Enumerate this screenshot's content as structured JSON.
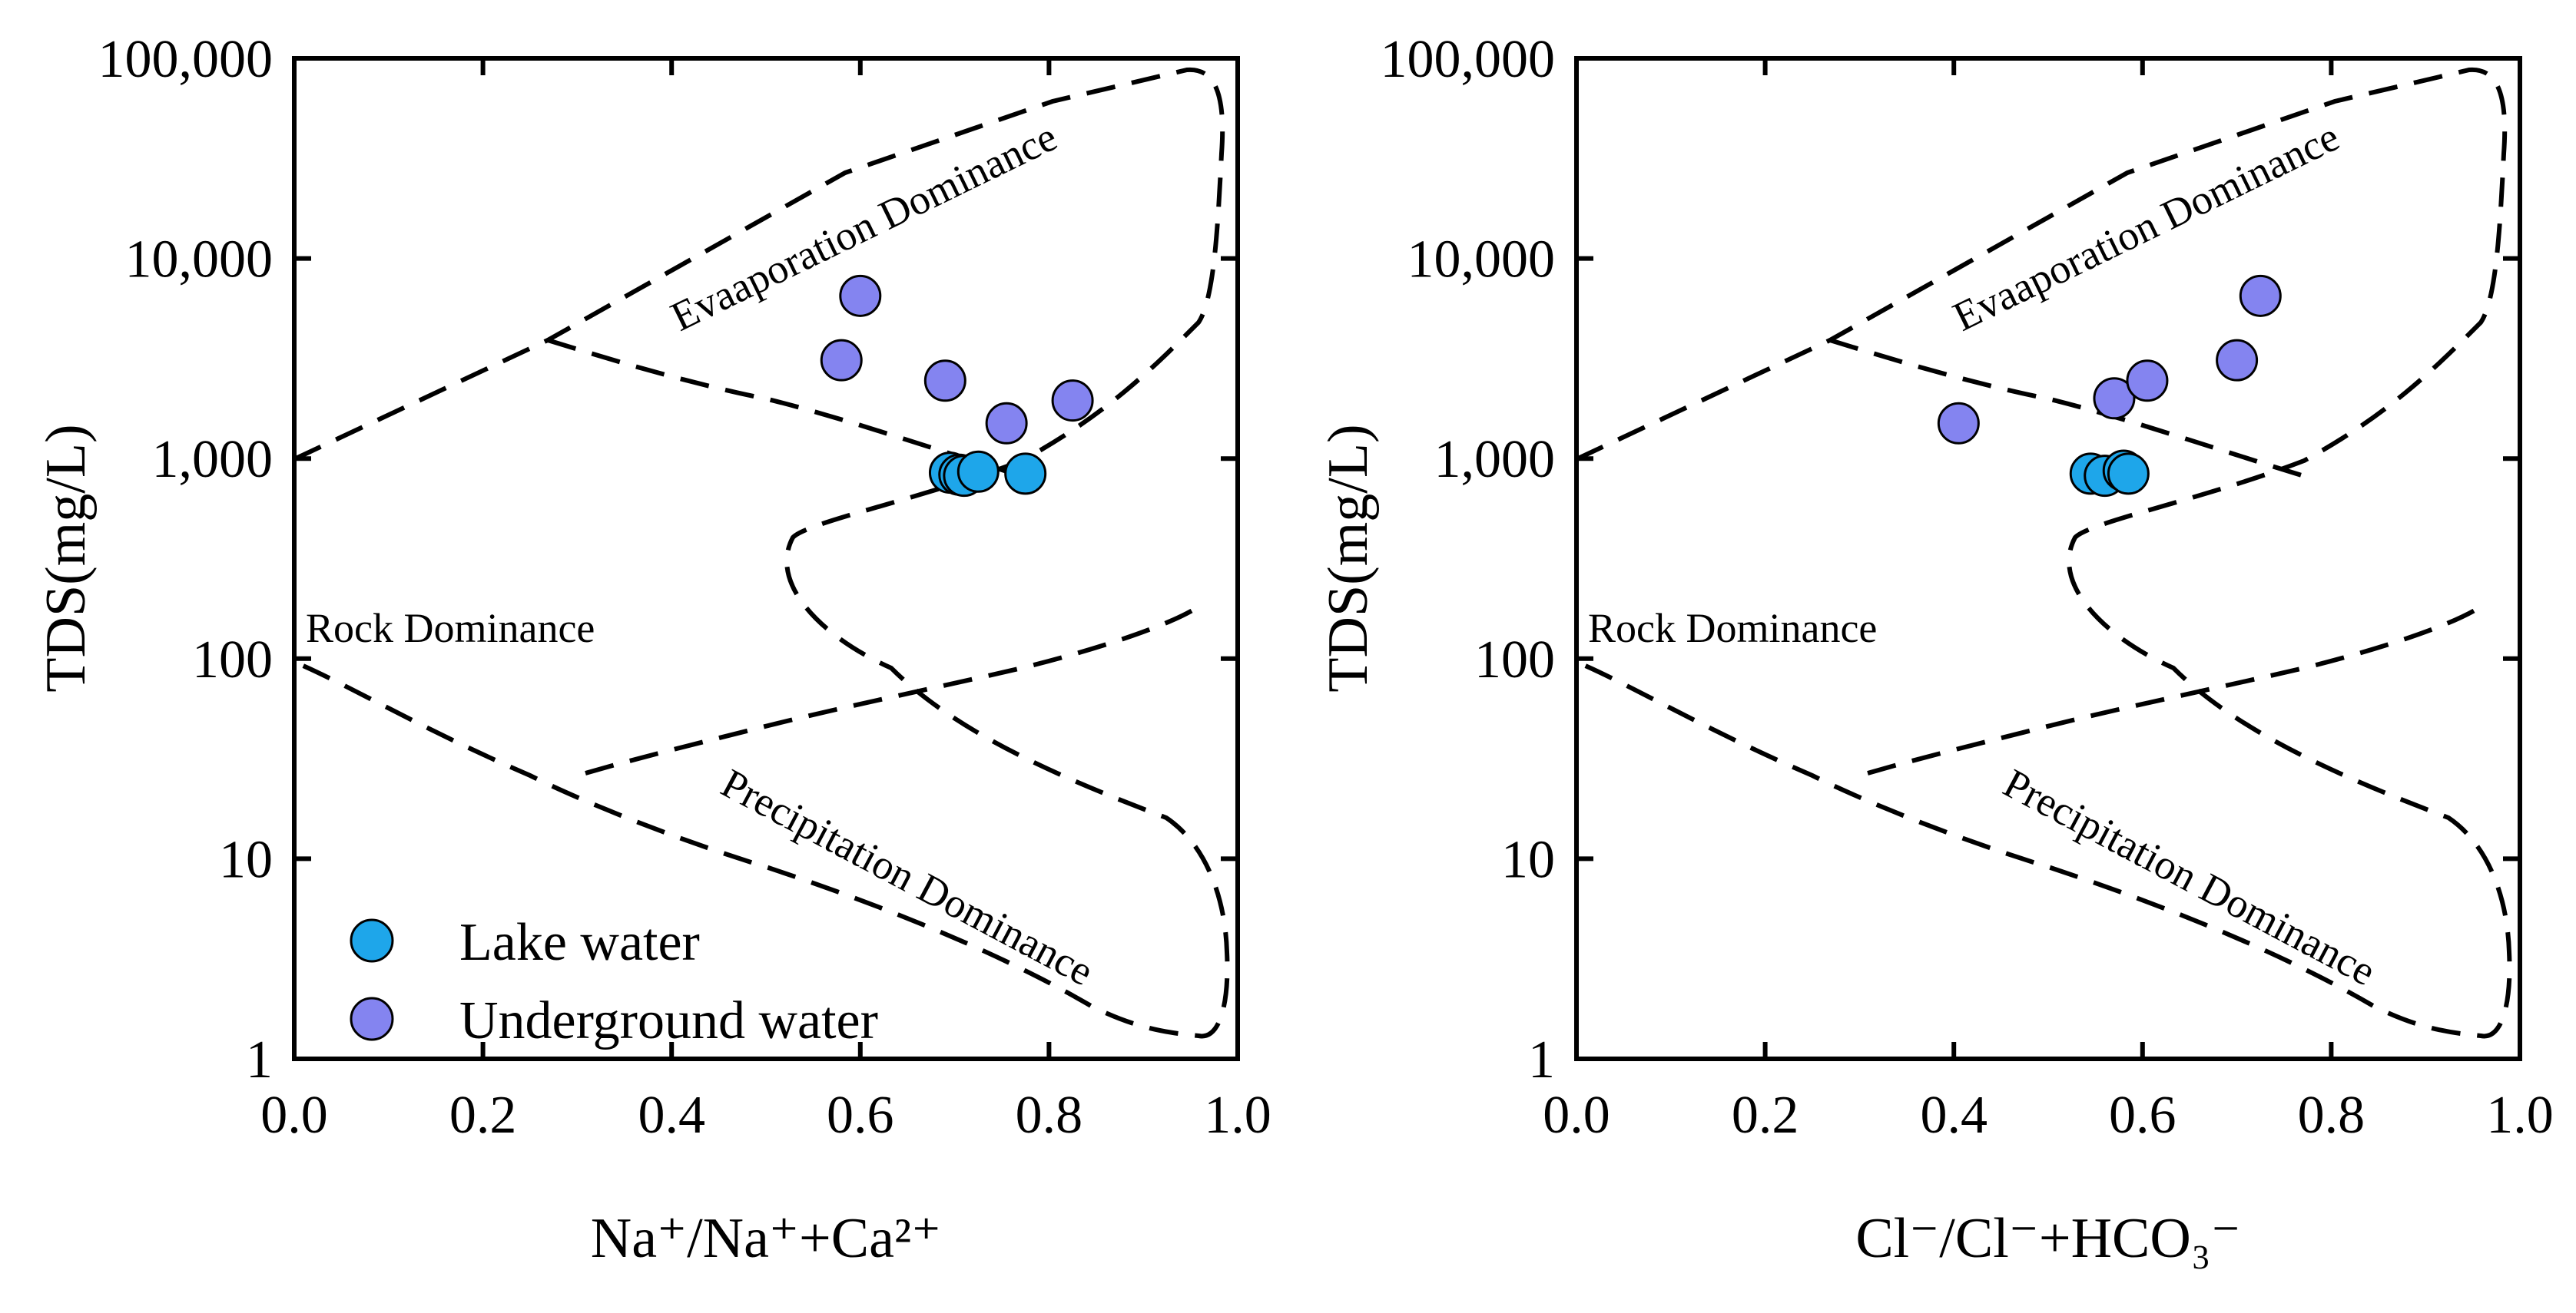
{
  "chart_data": [
    {
      "type": "scatter",
      "xlabel": "Na⁺/Na⁺+Ca²⁺",
      "ylabel": "TDS(mg/L)",
      "xlim": [
        0,
        1
      ],
      "ylim": [
        1,
        100000
      ],
      "yscale": "log",
      "xticks": [
        "0.0",
        "0.2",
        "0.4",
        "0.6",
        "0.8",
        "1.0"
      ],
      "yticks": [
        "1",
        "10",
        "100",
        "1,000",
        "10,000",
        "100,000"
      ],
      "regions": [
        "Evaaporation Dominance",
        "Rock Dominance",
        "Precipitation Dominance"
      ],
      "legend": {
        "position": "bottom-left",
        "entries": [
          "Lake water",
          "Underground water"
        ]
      },
      "series": [
        {
          "name": "Lake water",
          "color": "#1ea6ea",
          "points": [
            [
              0.695,
              850
            ],
            [
              0.705,
              830
            ],
            [
              0.71,
              820
            ],
            [
              0.725,
              860
            ],
            [
              0.775,
              840
            ]
          ]
        },
        {
          "name": "Underground water",
          "color": "#8484f0",
          "points": [
            [
              0.58,
              3100
            ],
            [
              0.6,
              6500
            ],
            [
              0.69,
              2450
            ],
            [
              0.755,
              1500
            ],
            [
              0.825,
              1950
            ]
          ]
        }
      ]
    },
    {
      "type": "scatter",
      "xlabel": "Cl⁻/Cl⁻+HCO₃⁻",
      "ylabel": "TDS(mg/L)",
      "xlim": [
        0,
        1
      ],
      "ylim": [
        1,
        100000
      ],
      "yscale": "log",
      "xticks": [
        "0.0",
        "0.2",
        "0.4",
        "0.6",
        "0.8",
        "1.0"
      ],
      "yticks": [
        "1",
        "10",
        "100",
        "1,000",
        "10,000",
        "100,000"
      ],
      "regions": [
        "Evaaporation Dominance",
        "Rock Dominance",
        "Precipitation Dominance"
      ],
      "series": [
        {
          "name": "Lake water",
          "color": "#1ea6ea",
          "points": [
            [
              0.545,
              840
            ],
            [
              0.56,
              820
            ],
            [
              0.58,
              870
            ],
            [
              0.585,
              840
            ]
          ]
        },
        {
          "name": "Underground water",
          "color": "#8484f0",
          "points": [
            [
              0.405,
              1500
            ],
            [
              0.57,
              2000
            ],
            [
              0.605,
              2450
            ],
            [
              0.7,
              3100
            ],
            [
              0.725,
              6500
            ]
          ]
        }
      ]
    }
  ]
}
